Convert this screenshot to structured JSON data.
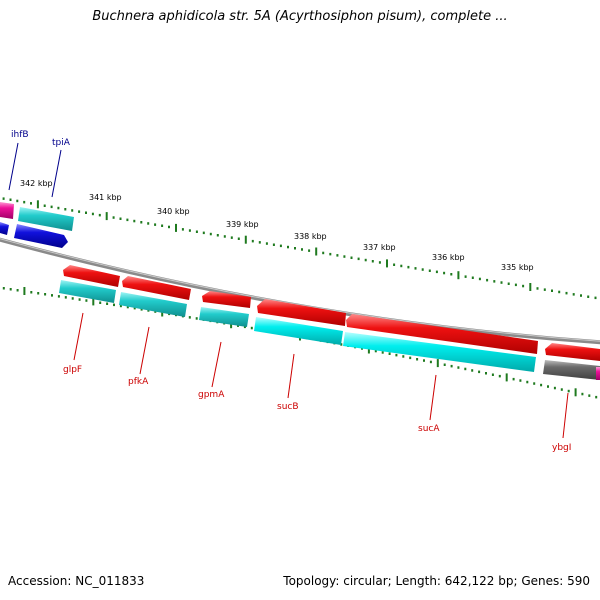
{
  "title": "Buchnera aphidicola str. 5A (Acyrthosiphon pisum), complete ...",
  "footer": {
    "accession": "Accession: NC_011833",
    "summary": "Topology: circular; Length: 642,122 bp; Genes: 590"
  },
  "colors": {
    "backbone": "#8a8a8a",
    "tick": "#1f7a1f",
    "red_gene": "#ee1111",
    "cyan_gene": "#22cccc",
    "blue_gene": "#1111dd",
    "gray_gene": "#666666",
    "magenta_gene": "#ee1199",
    "label_red": "#cc0000",
    "label_blue": "#00008b"
  },
  "ticks": [
    {
      "label": "342 kbp"
    },
    {
      "label": "341 kbp"
    },
    {
      "label": "340 kbp"
    },
    {
      "label": "339 kbp"
    },
    {
      "label": "338 kbp"
    },
    {
      "label": "337 kbp"
    },
    {
      "label": "336 kbp"
    },
    {
      "label": "335 kbp"
    }
  ],
  "gene_labels": [
    {
      "name": "ihfB"
    },
    {
      "name": "tpiA"
    },
    {
      "name": "glpF"
    },
    {
      "name": "pfkA"
    },
    {
      "name": "gpmA"
    },
    {
      "name": "sucB"
    },
    {
      "name": "sucA"
    },
    {
      "name": "ybgI"
    }
  ]
}
